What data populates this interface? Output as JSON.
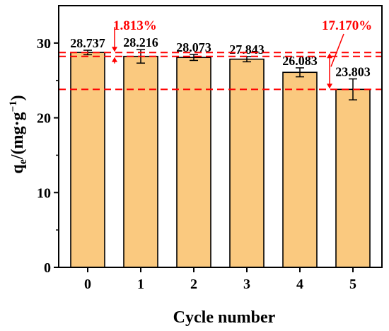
{
  "chart_data": {
    "type": "bar",
    "categories": [
      "0",
      "1",
      "2",
      "3",
      "4",
      "5"
    ],
    "values": [
      28.737,
      28.216,
      28.073,
      27.843,
      26.083,
      23.803
    ],
    "error": [
      0.3,
      0.9,
      0.4,
      0.35,
      0.6,
      1.4
    ],
    "value_labels": [
      "28.737",
      "28.216",
      "28.073",
      "27.843",
      "26.083",
      "23.803"
    ],
    "xlabel": "Cycle number",
    "ylabel_main": "q",
    "ylabel_sub": "e",
    "ylabel_rest": "/(mg·g",
    "ylabel_sup": "−1",
    "ylabel_close": ")",
    "ylim": [
      0,
      35
    ],
    "yticks": [
      0,
      10,
      20,
      30
    ],
    "grid": false,
    "bar_color": "#FAC97F",
    "reference_lines": [
      28.737,
      28.216,
      23.803
    ],
    "reference_color": "#FF0000",
    "annotations": [
      {
        "text": "1.813%",
        "between": [
          28.737,
          28.216
        ]
      },
      {
        "text": "17.170%",
        "between": [
          28.737,
          23.803
        ]
      }
    ]
  }
}
